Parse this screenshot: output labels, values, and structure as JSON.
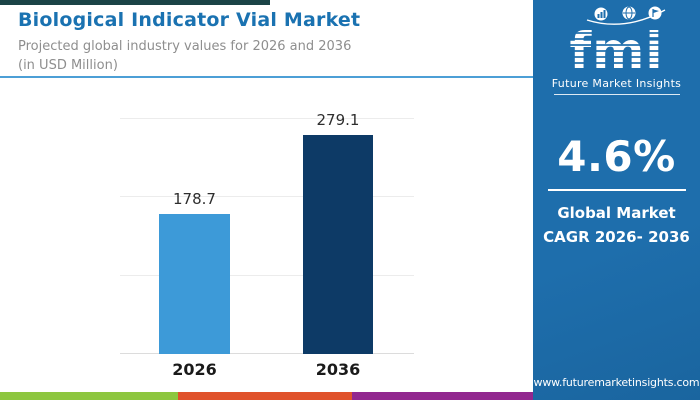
{
  "header": {
    "title": "Biological Indicator Vial Market",
    "subtitle_line1": "Projected global industry values for 2026 and 2036",
    "subtitle_line2": "(in USD Million)"
  },
  "chart_data": {
    "type": "bar",
    "title": "Biological Indicator Vial Market",
    "subtitle": "Projected global industry values for 2026 and 2036 (in USD Million)",
    "categories": [
      "2026",
      "2036"
    ],
    "values": [
      178.7,
      279.1
    ],
    "value_labels": [
      "178.7",
      "279.1"
    ],
    "xlabel": "",
    "ylabel": "USD Million",
    "ylim": [
      0,
      300
    ],
    "gridline_values": [
      0,
      100,
      200,
      300
    ],
    "grid": true,
    "legend": "none",
    "bar_colors": [
      "#3D9AD8",
      "#0D3A66"
    ]
  },
  "sidebar": {
    "logo": {
      "text": "fmi",
      "tagline": "Future Market Insights",
      "icons": [
        "chart-icon",
        "globe-icon",
        "flag-icon"
      ]
    },
    "cagr_value": "4.6%",
    "cagr_label_line1": "Global Market",
    "cagr_label_line2": "CAGR 2026- 2036",
    "website": "www.futuremarketinsights.com"
  },
  "palette": {
    "top_bar": "#1B4447",
    "title_text": "#1A72B1",
    "subtitle_text": "#8E8E8E",
    "header_divider": "#4C9FD6",
    "sidebar_bg": "#1E6EAC",
    "gridline": "#ECECEC",
    "baseline": "#DCDCDC",
    "value_label_text": "#2E2E2E",
    "axis_label_text": "#1A1A1A",
    "stripe_colors": [
      "#8DC63F",
      "#E0522B",
      "#92278F"
    ]
  }
}
